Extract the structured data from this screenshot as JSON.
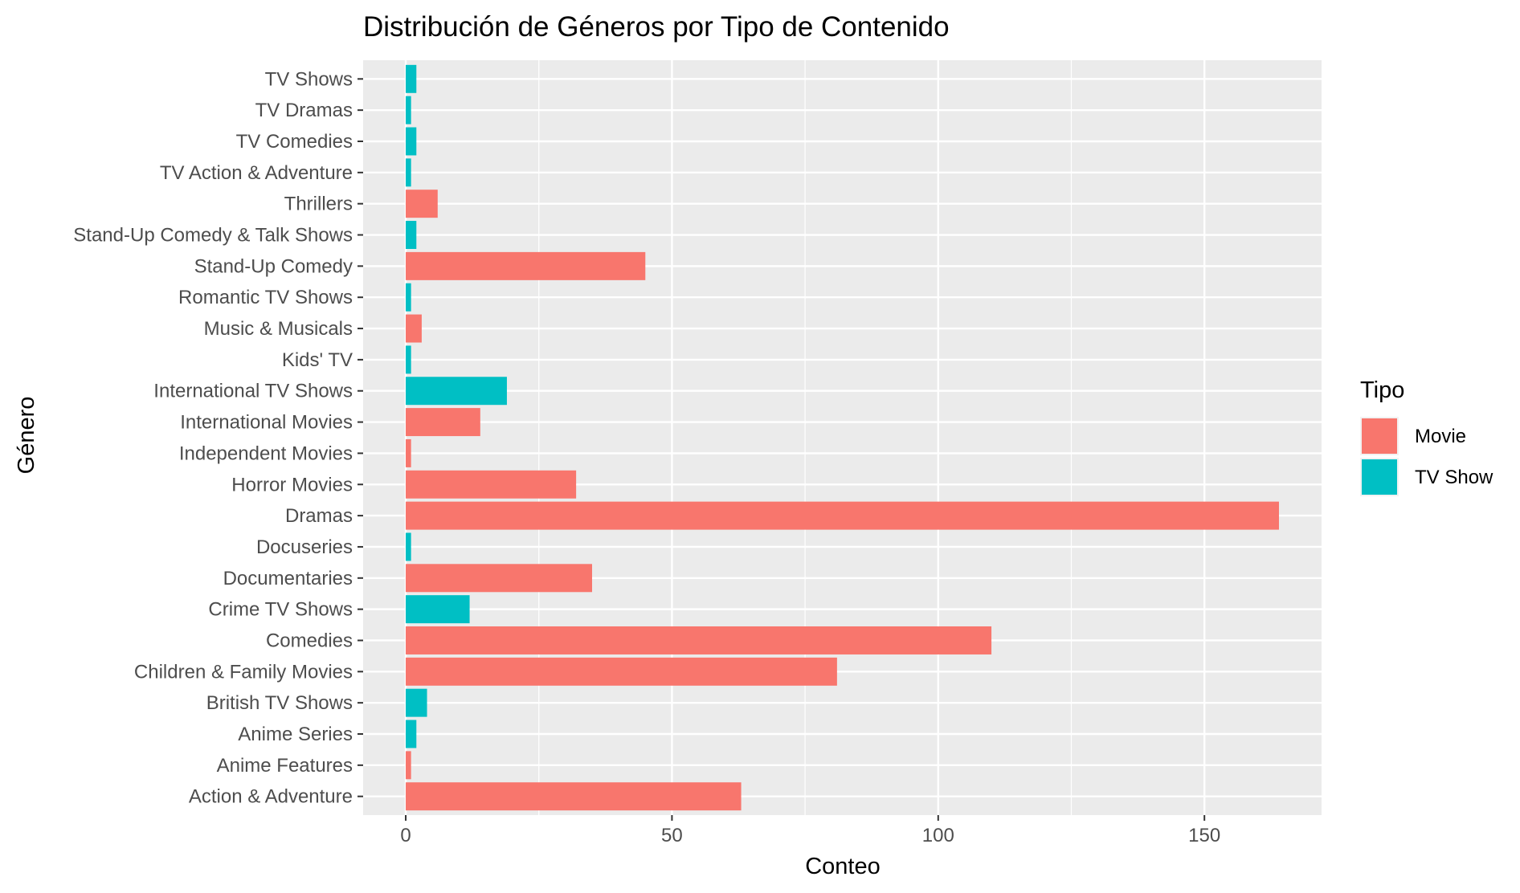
{
  "chart_data": {
    "type": "bar",
    "orientation": "horizontal",
    "title": "Distribución de Géneros por Tipo de Contenido",
    "xlabel": "Conteo",
    "ylabel": "Género",
    "xlim": [
      -8,
      172
    ],
    "x_ticks": [
      0,
      50,
      100,
      150
    ],
    "x_tick_labels": [
      "0",
      "50",
      "100",
      "150"
    ],
    "grid": true,
    "legend": {
      "title": "Tipo",
      "position": "right",
      "entries": [
        {
          "name": "Movie",
          "color": "#F8766D"
        },
        {
          "name": "TV Show",
          "color": "#00BFC4"
        }
      ]
    },
    "categories": [
      "Action & Adventure",
      "Anime Features",
      "Anime Series",
      "British TV Shows",
      "Children & Family Movies",
      "Comedies",
      "Crime TV Shows",
      "Documentaries",
      "Docuseries",
      "Dramas",
      "Horror Movies",
      "Independent Movies",
      "International Movies",
      "International TV Shows",
      "Kids' TV",
      "Music & Musicals",
      "Romantic TV Shows",
      "Stand-Up Comedy",
      "Stand-Up Comedy & Talk Shows",
      "Thrillers",
      "TV Action & Adventure",
      "TV Comedies",
      "TV Dramas",
      "TV Shows"
    ],
    "bars": [
      {
        "category": "Action & Adventure",
        "type": "Movie",
        "value": 63
      },
      {
        "category": "Anime Features",
        "type": "Movie",
        "value": 1
      },
      {
        "category": "Anime Series",
        "type": "TV Show",
        "value": 2
      },
      {
        "category": "British TV Shows",
        "type": "TV Show",
        "value": 4
      },
      {
        "category": "Children & Family Movies",
        "type": "Movie",
        "value": 81
      },
      {
        "category": "Comedies",
        "type": "Movie",
        "value": 110
      },
      {
        "category": "Crime TV Shows",
        "type": "TV Show",
        "value": 12
      },
      {
        "category": "Documentaries",
        "type": "Movie",
        "value": 35
      },
      {
        "category": "Docuseries",
        "type": "TV Show",
        "value": 1
      },
      {
        "category": "Dramas",
        "type": "Movie",
        "value": 164
      },
      {
        "category": "Horror Movies",
        "type": "Movie",
        "value": 32
      },
      {
        "category": "Independent Movies",
        "type": "Movie",
        "value": 1
      },
      {
        "category": "International Movies",
        "type": "Movie",
        "value": 14
      },
      {
        "category": "International TV Shows",
        "type": "TV Show",
        "value": 19
      },
      {
        "category": "Kids' TV",
        "type": "TV Show",
        "value": 1
      },
      {
        "category": "Music & Musicals",
        "type": "Movie",
        "value": 3
      },
      {
        "category": "Romantic TV Shows",
        "type": "TV Show",
        "value": 1
      },
      {
        "category": "Stand-Up Comedy",
        "type": "Movie",
        "value": 45
      },
      {
        "category": "Stand-Up Comedy & Talk Shows",
        "type": "TV Show",
        "value": 2
      },
      {
        "category": "Thrillers",
        "type": "Movie",
        "value": 6
      },
      {
        "category": "TV Action & Adventure",
        "type": "TV Show",
        "value": 1
      },
      {
        "category": "TV Comedies",
        "type": "TV Show",
        "value": 2
      },
      {
        "category": "TV Dramas",
        "type": "TV Show",
        "value": 1
      },
      {
        "category": "TV Shows",
        "type": "TV Show",
        "value": 2
      }
    ]
  }
}
